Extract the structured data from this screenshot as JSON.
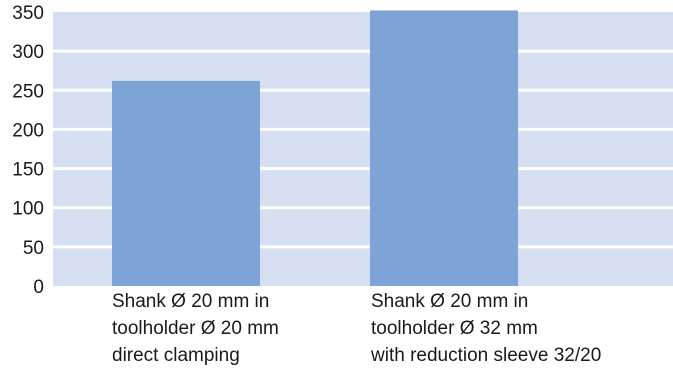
{
  "chart_data": {
    "type": "bar",
    "categories": [
      [
        "Shank Ø 20 mm in",
        "toolholder Ø 20 mm",
        "direct clamping"
      ],
      [
        "Shank Ø 20 mm in",
        "toolholder Ø 32 mm",
        "with reduction sleeve 32/20"
      ]
    ],
    "values": [
      262,
      352
    ],
    "yticks": [
      "0",
      "50",
      "100",
      "150",
      "200",
      "250",
      "300",
      "350"
    ],
    "ylim": [
      0,
      350
    ],
    "grid": true,
    "title": "",
    "xlabel": "",
    "ylabel": "",
    "colors": {
      "plot_bg": "#d6def1",
      "bar": "#7ea3d6",
      "grid": "#ffffff",
      "text": "#1a1a1a"
    }
  }
}
